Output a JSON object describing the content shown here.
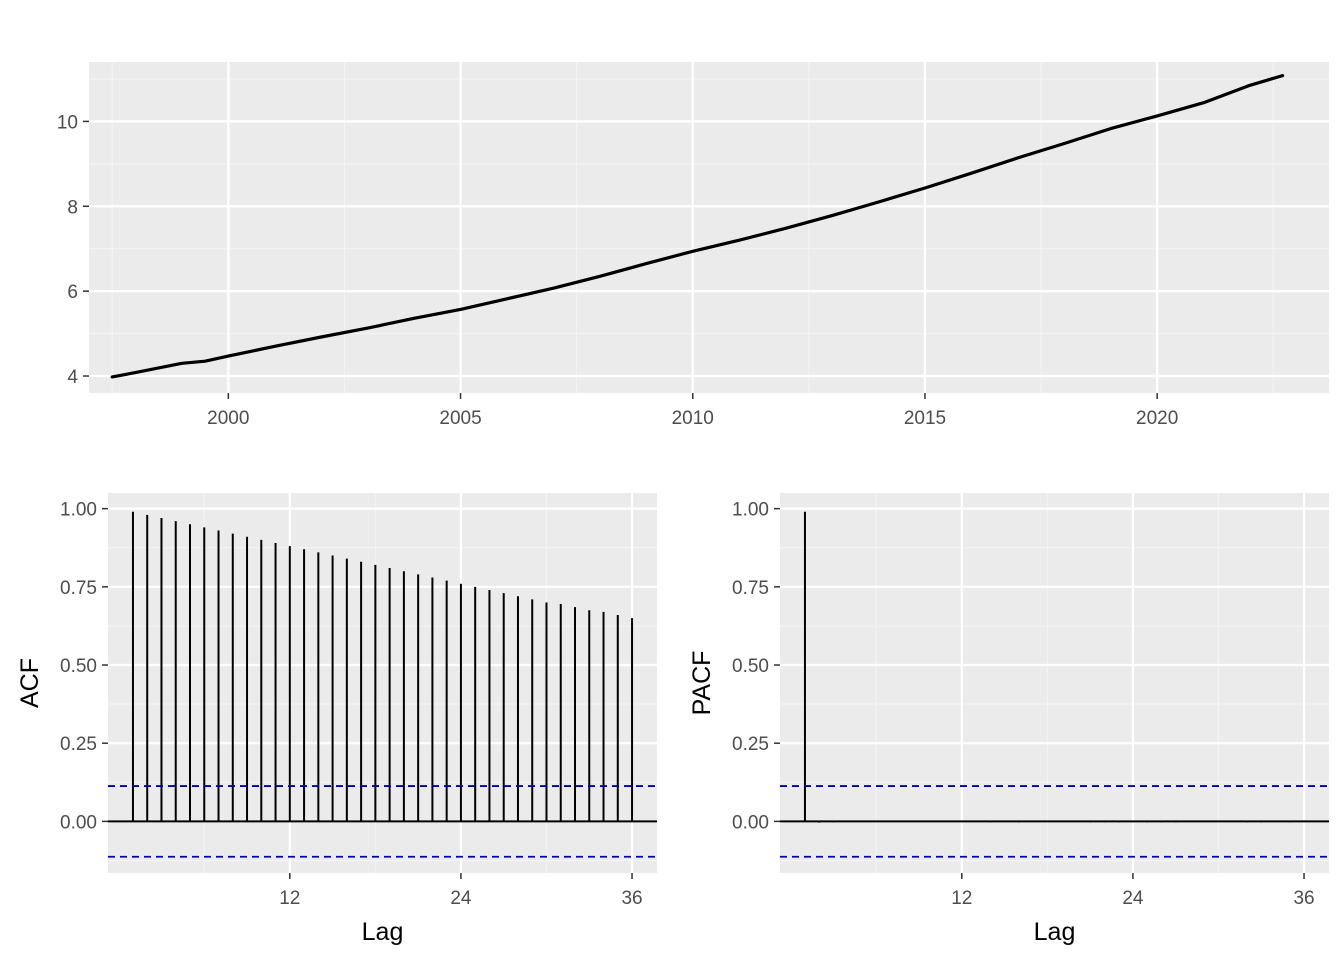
{
  "colors": {
    "panel_background": "#ebebeb",
    "grid_major": "#ffffff",
    "grid_minor": "#f4f4f4",
    "series_line": "#000000",
    "ci_line": "#0000aa",
    "tick_text": "#4d4d4d",
    "axis_text": "#000000"
  },
  "chart_data": [
    {
      "type": "line",
      "title": "",
      "xlabel": "",
      "ylabel": "",
      "xlim": [
        1997.0,
        2023.7
      ],
      "ylim": [
        3.6,
        11.4
      ],
      "x_ticks": [
        2000,
        2005,
        2010,
        2015,
        2020
      ],
      "x_tick_labels": [
        "2000",
        "2005",
        "2010",
        "2015",
        "2020"
      ],
      "y_ticks": [
        4,
        6,
        8,
        10
      ],
      "y_tick_labels": [
        "4",
        "6",
        "8",
        "10"
      ],
      "grid": true,
      "series": [
        {
          "x": [
            1997.5,
            1998.0,
            1999.0,
            1999.5,
            2000.0,
            2001.0,
            2002.0,
            2003.0,
            2004.0,
            2005.0,
            2006.0,
            2007.0,
            2008.0,
            2009.0,
            2010.0,
            2011.0,
            2012.0,
            2013.0,
            2014.0,
            2015.0,
            2016.0,
            2017.0,
            2018.0,
            2019.0,
            2020.0,
            2021.0,
            2022.0,
            2022.7
          ],
          "y": [
            3.98,
            4.08,
            4.3,
            4.35,
            4.47,
            4.7,
            4.92,
            5.13,
            5.36,
            5.57,
            5.82,
            6.07,
            6.35,
            6.65,
            6.94,
            7.2,
            7.48,
            7.78,
            8.1,
            8.43,
            8.78,
            9.14,
            9.48,
            9.83,
            10.13,
            10.44,
            10.85,
            11.08
          ]
        }
      ]
    },
    {
      "type": "bar",
      "title": "",
      "xlabel": "Lag",
      "ylabel": "ACF",
      "xlim": [
        -0.75,
        37.75
      ],
      "ylim": [
        -0.165,
        1.05
      ],
      "x_ticks": [
        12,
        24,
        36
      ],
      "x_tick_labels": [
        "12",
        "24",
        "36"
      ],
      "y_ticks": [
        0,
        0.25,
        0.5,
        0.75,
        1
      ],
      "y_tick_labels": [
        "0.00",
        "0.25",
        "0.50",
        "0.75",
        "1.00"
      ],
      "grid": true,
      "confidence_limits": [
        0.113,
        -0.113
      ],
      "lags": [
        1,
        2,
        3,
        4,
        5,
        6,
        7,
        8,
        9,
        10,
        11,
        12,
        13,
        14,
        15,
        16,
        17,
        18,
        19,
        20,
        21,
        22,
        23,
        24,
        25,
        26,
        27,
        28,
        29,
        30,
        31,
        32,
        33,
        34,
        35,
        36
      ],
      "values": [
        0.99,
        0.98,
        0.97,
        0.96,
        0.95,
        0.94,
        0.93,
        0.92,
        0.91,
        0.9,
        0.89,
        0.88,
        0.87,
        0.86,
        0.85,
        0.84,
        0.83,
        0.82,
        0.81,
        0.8,
        0.79,
        0.78,
        0.77,
        0.76,
        0.75,
        0.74,
        0.73,
        0.72,
        0.71,
        0.7,
        0.695,
        0.685,
        0.675,
        0.67,
        0.66,
        0.65
      ]
    },
    {
      "type": "bar",
      "title": "",
      "xlabel": "Lag",
      "ylabel": "PACF",
      "xlim": [
        -0.75,
        37.75
      ],
      "ylim": [
        -0.165,
        1.05
      ],
      "x_ticks": [
        12,
        24,
        36
      ],
      "x_tick_labels": [
        "12",
        "24",
        "36"
      ],
      "y_ticks": [
        0,
        0.25,
        0.5,
        0.75,
        1
      ],
      "y_tick_labels": [
        "0.00",
        "0.25",
        "0.50",
        "0.75",
        "1.00"
      ],
      "grid": true,
      "confidence_limits": [
        0.113,
        -0.113
      ],
      "lags": [
        1,
        2,
        3,
        4,
        5,
        6,
        7,
        8,
        9,
        10,
        11,
        12,
        13,
        14,
        15,
        16,
        17,
        18,
        19,
        20,
        21,
        22,
        23,
        24,
        25,
        26,
        27,
        28,
        29,
        30,
        31,
        32,
        33,
        34,
        35,
        36
      ],
      "values": [
        0.99,
        -0.004,
        -0.003,
        0.0,
        0.0,
        0.0,
        0.0,
        0.0,
        0.0,
        0.0,
        0.0,
        0.0,
        0.0,
        -0.003,
        0.0,
        -0.003,
        0.0,
        0.0,
        0.0,
        0.0,
        -0.003,
        -0.003,
        -0.003,
        -0.003,
        -0.003,
        -0.003,
        -0.003,
        0.0,
        0.0,
        0.0,
        0.0,
        -0.003,
        -0.003,
        0.0,
        -0.003,
        0.0
      ]
    }
  ]
}
